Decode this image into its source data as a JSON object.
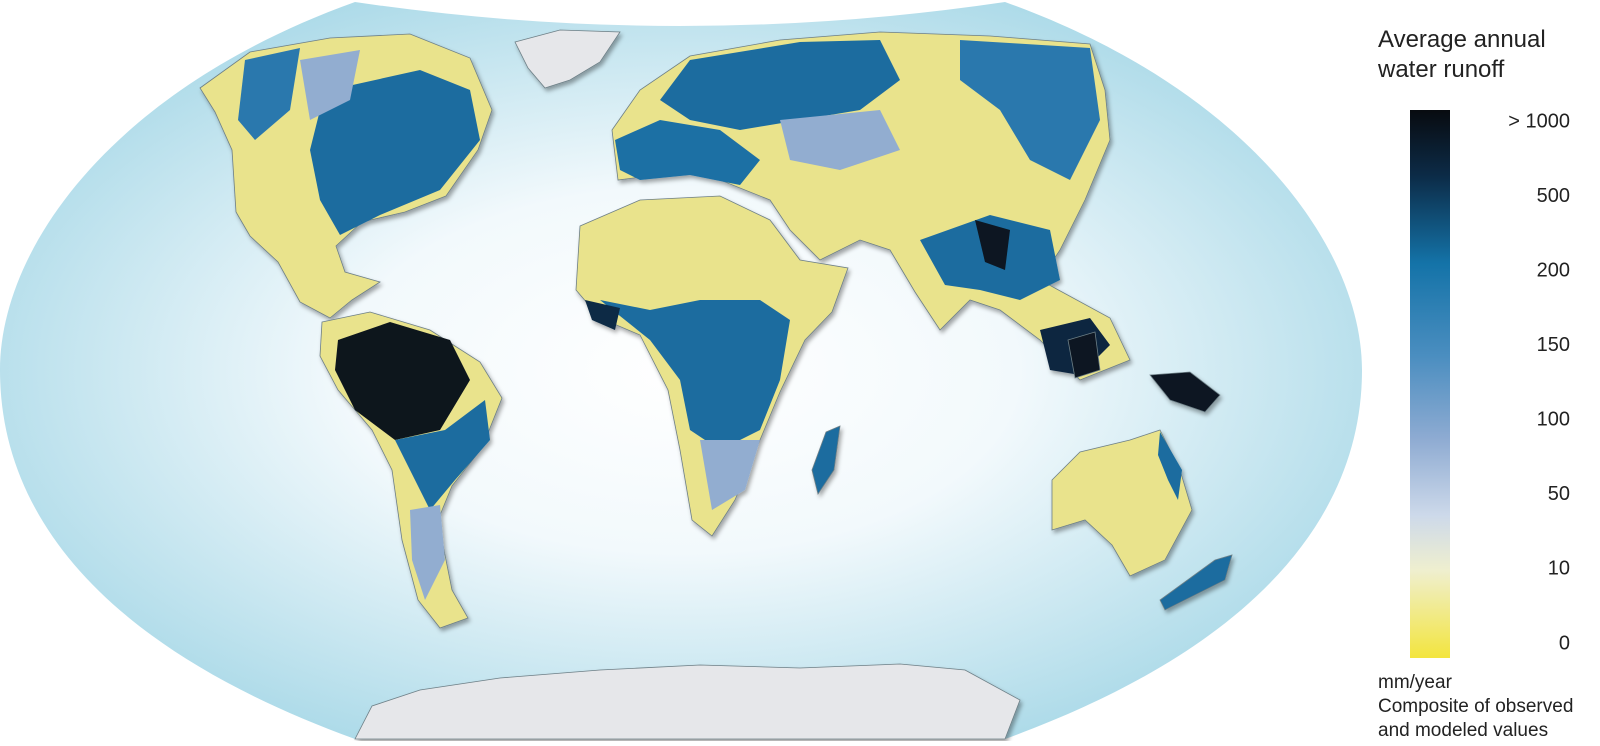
{
  "legend": {
    "title_lines": [
      "Average annual",
      "water runoff"
    ],
    "ticks": [
      "> 1000",
      "500",
      "200",
      "150",
      "100",
      "50",
      "10",
      "0"
    ],
    "unit": "mm/year",
    "note_lines": [
      "Composite of observed",
      "and modeled values"
    ]
  }
}
